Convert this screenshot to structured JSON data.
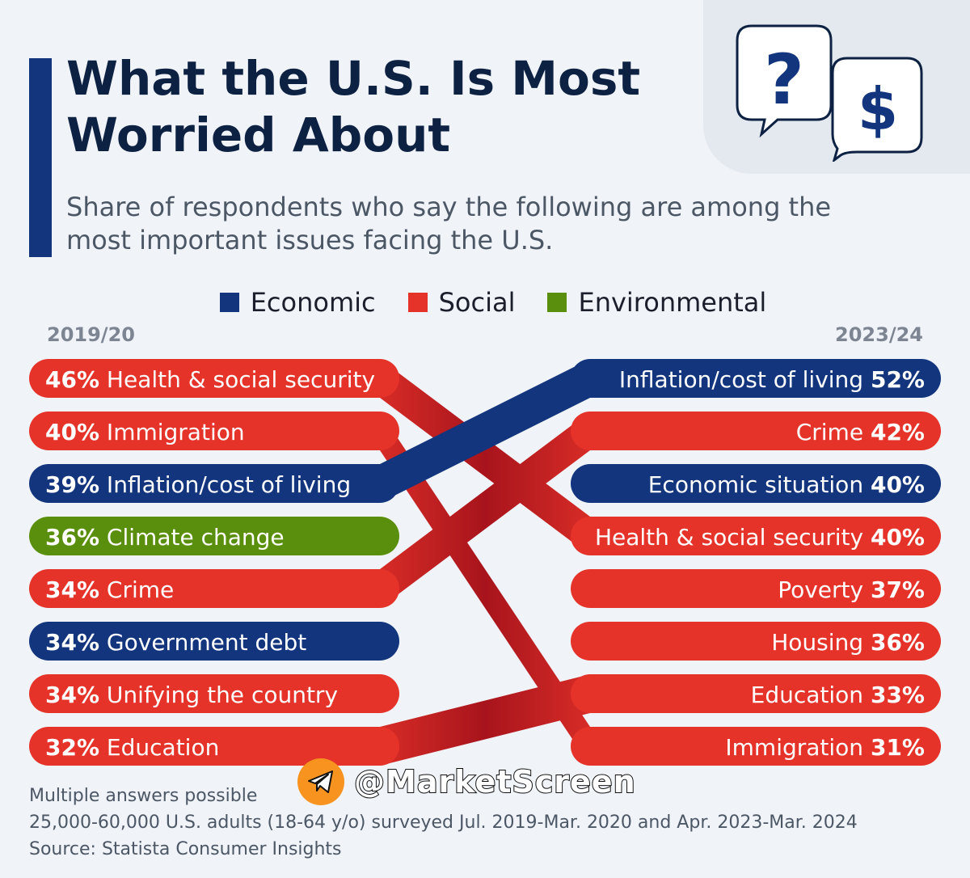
{
  "header": {
    "title": "What the U.S. Is Most Worried About",
    "subtitle": "Share of respondents who say the following are among the most important issues facing the U.S."
  },
  "legend": [
    {
      "label": "Economic",
      "color": "#12357e"
    },
    {
      "label": "Social",
      "color": "#e5332a"
    },
    {
      "label": "Environmental",
      "color": "#5a8f0d"
    }
  ],
  "colors": {
    "Economic": "#12357e",
    "Social": "#e5332a",
    "Environmental": "#5a8f0d",
    "Social_ribbon_dark": "#a8141c"
  },
  "chart_data": {
    "type": "slope",
    "left_label": "2019/20",
    "right_label": "2023/24",
    "left": [
      {
        "label": "Health & social security",
        "value": "46%",
        "category": "Social"
      },
      {
        "label": "Immigration",
        "value": "40%",
        "category": "Social"
      },
      {
        "label": "Inflation/cost of living",
        "value": "39%",
        "category": "Economic"
      },
      {
        "label": "Climate change",
        "value": "36%",
        "category": "Environmental"
      },
      {
        "label": "Crime",
        "value": "34%",
        "category": "Social"
      },
      {
        "label": "Government debt",
        "value": "34%",
        "category": "Economic"
      },
      {
        "label": "Unifying the country",
        "value": "34%",
        "category": "Social"
      },
      {
        "label": "Education",
        "value": "32%",
        "category": "Social"
      }
    ],
    "right": [
      {
        "label": "Inflation/cost of living",
        "value": "52%",
        "category": "Economic"
      },
      {
        "label": "Crime",
        "value": "42%",
        "category": "Social"
      },
      {
        "label": "Economic situation",
        "value": "40%",
        "category": "Economic"
      },
      {
        "label": "Health & social security",
        "value": "40%",
        "category": "Social"
      },
      {
        "label": "Poverty",
        "value": "37%",
        "category": "Social"
      },
      {
        "label": "Housing",
        "value": "36%",
        "category": "Social"
      },
      {
        "label": "Education",
        "value": "33%",
        "category": "Social"
      },
      {
        "label": "Immigration",
        "value": "31%",
        "category": "Social"
      }
    ],
    "connections": [
      {
        "from": 0,
        "to": 3
      },
      {
        "from": 1,
        "to": 7
      },
      {
        "from": 2,
        "to": 0
      },
      {
        "from": 4,
        "to": 1
      },
      {
        "from": 7,
        "to": 6
      }
    ]
  },
  "footer": {
    "note": "Multiple answers possible",
    "survey": "25,000-60,000 U.S. adults (18-64 y/o) surveyed Jul. 2019-Mar. 2020 and Apr. 2023-Mar. 2024",
    "source": "Source: Statista Consumer Insights"
  },
  "watermark": {
    "text": "@MarketScreen",
    "icon": "telegram-icon"
  },
  "decoration": {
    "icons": [
      "question-bubble-icon",
      "dollar-bubble-icon"
    ],
    "question_glyph": "?",
    "dollar_glyph": "$"
  }
}
